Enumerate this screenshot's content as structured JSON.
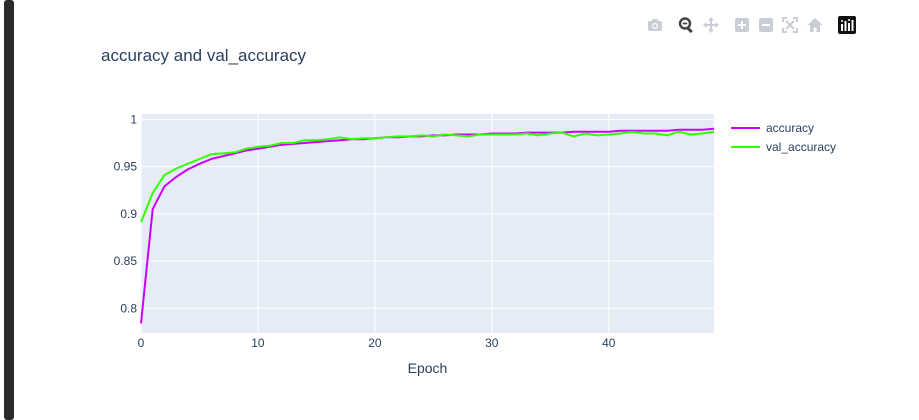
{
  "modebar": {
    "icons": [
      "camera-icon",
      "zoom-icon",
      "pan-icon",
      "zoom-in-icon",
      "zoom-out-icon",
      "autoscale-icon",
      "reset-axes-icon",
      "plotly-logo-icon"
    ]
  },
  "chart_data": {
    "type": "line",
    "title": "accuracy and val_accuracy",
    "xlabel": "Epoch",
    "ylabel": "",
    "xlim": [
      0,
      49
    ],
    "ylim": [
      0.7738,
      1.0057
    ],
    "x_ticks": [
      0,
      10,
      20,
      30,
      40
    ],
    "y_ticks": [
      0.8,
      0.85,
      0.9,
      0.95,
      1
    ],
    "grid": true,
    "legend_position": "right",
    "x": [
      0,
      1,
      2,
      3,
      4,
      5,
      6,
      7,
      8,
      9,
      10,
      11,
      12,
      13,
      14,
      15,
      16,
      17,
      18,
      19,
      20,
      21,
      22,
      23,
      24,
      25,
      26,
      27,
      28,
      29,
      30,
      31,
      32,
      33,
      34,
      35,
      36,
      37,
      38,
      39,
      40,
      41,
      42,
      43,
      44,
      45,
      46,
      47,
      48,
      49
    ],
    "series": [
      {
        "name": "accuracy",
        "color": "#cc00ff",
        "values": [
          0.784,
          0.905,
          0.929,
          0.939,
          0.947,
          0.953,
          0.958,
          0.961,
          0.964,
          0.967,
          0.969,
          0.971,
          0.973,
          0.974,
          0.975,
          0.976,
          0.977,
          0.978,
          0.979,
          0.979,
          0.98,
          0.981,
          0.981,
          0.982,
          0.982,
          0.983,
          0.983,
          0.984,
          0.984,
          0.984,
          0.985,
          0.985,
          0.985,
          0.986,
          0.986,
          0.986,
          0.986,
          0.987,
          0.987,
          0.987,
          0.987,
          0.988,
          0.988,
          0.988,
          0.988,
          0.988,
          0.989,
          0.989,
          0.989,
          0.99
        ]
      },
      {
        "name": "val_accuracy",
        "color": "#33ff00",
        "values": [
          0.891,
          0.922,
          0.941,
          0.948,
          0.953,
          0.958,
          0.963,
          0.964,
          0.965,
          0.969,
          0.971,
          0.972,
          0.975,
          0.975,
          0.978,
          0.978,
          0.979,
          0.981,
          0.979,
          0.98,
          0.98,
          0.981,
          0.982,
          0.982,
          0.983,
          0.982,
          0.984,
          0.983,
          0.982,
          0.984,
          0.984,
          0.984,
          0.984,
          0.985,
          0.983,
          0.985,
          0.986,
          0.982,
          0.985,
          0.983,
          0.984,
          0.985,
          0.987,
          0.985,
          0.985,
          0.983,
          0.987,
          0.984,
          0.985,
          0.987
        ]
      }
    ]
  }
}
